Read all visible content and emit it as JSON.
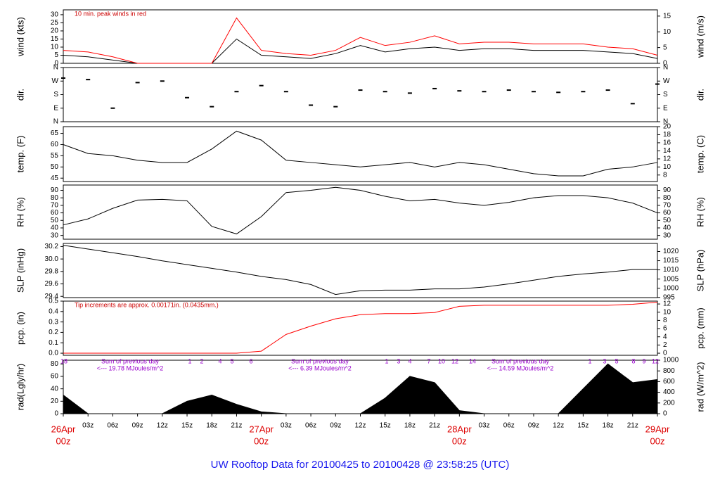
{
  "title": "UW Rooftop Data for 20100425  to  20100428 @ 23:58:25  (UTC)",
  "categories": [
    "00z",
    "03z",
    "06z",
    "09z",
    "12z",
    "15z",
    "18z",
    "21z",
    "00z",
    "03z",
    "06z",
    "09z",
    "12z",
    "15z",
    "18z",
    "21z",
    "00z",
    "03z",
    "06z",
    "09z",
    "12z",
    "15z",
    "18z",
    "21z",
    "00z"
  ],
  "dates": [
    "26Apr",
    "27Apr",
    "28Apr",
    "29Apr"
  ],
  "chart_data": [
    {
      "type": "line",
      "ylabel": "wind (kts)",
      "y2label": "wind (m/s)",
      "annotation": "10 min. peak winds in red",
      "ylim": [
        0,
        33
      ],
      "yticks": [
        0,
        5,
        10,
        15,
        20,
        25,
        30
      ],
      "y2lim": [
        0,
        16.98
      ],
      "y2ticks": [
        0,
        5,
        10,
        15
      ],
      "series": [
        {
          "name": "wind",
          "color": "#000000",
          "values": [
            5,
            4,
            2,
            0,
            0,
            0,
            0,
            15,
            5,
            4,
            3,
            6,
            11,
            7,
            9,
            10,
            8,
            9,
            9,
            8,
            8,
            8,
            7,
            6,
            3
          ]
        },
        {
          "name": "peak",
          "color": "#ff0000",
          "values": [
            8,
            7,
            4,
            0,
            0,
            0,
            0,
            28,
            8,
            6,
            5,
            8,
            16,
            11,
            13,
            17,
            12,
            13,
            13,
            12,
            12,
            12,
            10,
            9,
            5
          ]
        }
      ]
    },
    {
      "type": "scatter",
      "ylabel": "dir.",
      "ylim": [
        0,
        360
      ],
      "yticks": [
        {
          "value": 0,
          "label": "N"
        },
        {
          "value": 90,
          "label": "E"
        },
        {
          "value": 180,
          "label": "S"
        },
        {
          "value": 270,
          "label": "W"
        },
        {
          "value": 360,
          "label": "N"
        }
      ],
      "series": [
        {
          "name": "dir",
          "color": "#000000",
          "values": [
            290,
            280,
            90,
            260,
            270,
            160,
            100,
            200,
            240,
            200,
            110,
            100,
            210,
            200,
            190,
            220,
            205,
            200,
            210,
            200,
            195,
            200,
            210,
            120,
            250
          ]
        }
      ]
    },
    {
      "type": "line",
      "ylabel": "temp. (F)",
      "y2label": "temp. (C)",
      "ylim": [
        43.5,
        68
      ],
      "yticks": [
        45,
        50,
        55,
        60,
        65
      ],
      "y2lim": [
        6.39,
        20
      ],
      "y2ticks": [
        8,
        10,
        12,
        14,
        16,
        18,
        20
      ],
      "series": [
        {
          "name": "temp",
          "color": "#000000",
          "values": [
            60,
            56,
            55,
            53,
            52,
            52,
            58,
            66,
            62,
            53,
            52,
            51,
            50,
            51,
            52,
            50,
            52,
            51,
            49,
            47,
            46,
            46,
            49,
            50,
            52
          ]
        }
      ]
    },
    {
      "type": "line",
      "ylabel": "RH (%)",
      "y2label": "RH (%)",
      "ylim": [
        25,
        97
      ],
      "yticks": [
        30,
        40,
        50,
        60,
        70,
        80,
        90
      ],
      "y2lim": [
        25,
        97
      ],
      "y2ticks": [
        30,
        40,
        50,
        60,
        70,
        80,
        90
      ],
      "series": [
        {
          "name": "RH",
          "color": "#000000",
          "values": [
            44,
            52,
            66,
            77,
            78,
            76,
            42,
            32,
            55,
            87,
            90,
            94,
            90,
            82,
            76,
            78,
            73,
            70,
            74,
            80,
            83,
            83,
            80,
            73,
            60
          ]
        }
      ]
    },
    {
      "type": "line",
      "ylabel": "SLP (inHg)",
      "y2label": "SLP (hPa)",
      "ylim": [
        29.38,
        30.25
      ],
      "yticks": [
        29.4,
        29.6,
        29.8,
        {
          "value": 30,
          "label": "30.0"
        },
        30.2
      ],
      "y2lim": [
        994.9,
        1024.4
      ],
      "y2ticks": [
        995,
        1000,
        1005,
        1010,
        1015,
        1020
      ],
      "series": [
        {
          "name": "SLP",
          "color": "#000000",
          "values": [
            30.22,
            30.16,
            30.1,
            30.04,
            29.97,
            29.91,
            29.85,
            29.79,
            29.72,
            29.67,
            29.59,
            29.43,
            29.49,
            29.5,
            29.5,
            29.52,
            29.52,
            29.55,
            29.6,
            29.66,
            29.72,
            29.76,
            29.79,
            29.83,
            29.83
          ]
        }
      ]
    },
    {
      "type": "line",
      "ylabel": "pcp. (in)",
      "y2label": "pcp. (mm)",
      "annotation": "Tip increments are approx. 0.00171in. (0.0435mm.)",
      "ylim": [
        -0.02,
        0.5
      ],
      "yticks": [
        {
          "value": 0,
          "label": "0.0"
        },
        0.1,
        0.2,
        0.3,
        0.4,
        0.5
      ],
      "y2lim": [
        -0.508,
        12.7
      ],
      "y2ticks": [
        0,
        2,
        4,
        6,
        8,
        10,
        12
      ],
      "series": [
        {
          "name": "pcp",
          "color": "#ff0000",
          "values": [
            0,
            0,
            0,
            0,
            0,
            0,
            0,
            0,
            0.02,
            0.18,
            0.26,
            0.33,
            0.37,
            0.38,
            0.38,
            0.39,
            0.45,
            0.46,
            0.46,
            0.46,
            0.46,
            0.46,
            0.46,
            0.47,
            0.49
          ]
        }
      ]
    },
    {
      "type": "area",
      "ylabel": "rad(Lgly/hr)",
      "y2label": "rad (W/m^2)",
      "ylim": [
        0,
        86
      ],
      "yticks": [
        0,
        20,
        40,
        60,
        80
      ],
      "y2lim": [
        0,
        1000
      ],
      "y2ticks": [
        0,
        200,
        400,
        600,
        800,
        1000
      ],
      "day_sums": [
        [
          "Sum of previous day",
          "<--- 19.78 MJoules/m^2"
        ],
        [
          "Sum of previous day",
          "<--- 6.39 MJoules/m^2"
        ],
        [
          "Sum of previous day",
          "<--- 14.59 MJoules/m^2"
        ]
      ],
      "hour_marks": [
        "18",
        "1",
        "2",
        "4",
        "5",
        "6",
        "1",
        "3",
        "4",
        "7",
        "10",
        "12",
        "14",
        "1",
        "3",
        "5",
        "8",
        "9",
        "12"
      ],
      "series": [
        {
          "name": "rad",
          "color": "#000000",
          "values": [
            30,
            0,
            0,
            0,
            0,
            20,
            30,
            15,
            3,
            0,
            0,
            0,
            0,
            25,
            60,
            50,
            5,
            0,
            0,
            0,
            0,
            40,
            80,
            50,
            55
          ]
        }
      ]
    }
  ]
}
